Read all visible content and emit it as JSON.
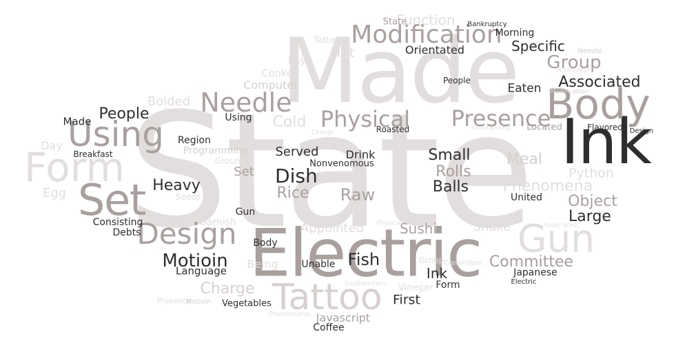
{
  "words": [
    {
      "text": "State",
      "color": "#e2dedd"
    },
    {
      "text": "Made",
      "color": "#e2dedd"
    },
    {
      "text": "Electric",
      "color": "#a9a09e"
    },
    {
      "text": "Ink",
      "color": "#2e2e2e"
    },
    {
      "text": "Body",
      "color": "#a9a09e"
    },
    {
      "text": "Tattoo",
      "color": "#d6d0ce"
    },
    {
      "text": "Gun",
      "color": "#e2dedd"
    },
    {
      "text": "Set",
      "color": "#a9a09e"
    },
    {
      "text": "Form",
      "color": "#e2dedd"
    },
    {
      "text": "Using",
      "color": "#a9a09e"
    },
    {
      "text": "Design",
      "color": "#a9a09e"
    },
    {
      "text": "Modification",
      "color": "#a9a09e"
    },
    {
      "text": "Needle",
      "color": "#a9a09e"
    },
    {
      "text": "Physical",
      "color": "#a9a09e"
    },
    {
      "text": "Presence",
      "color": "#a9a09e"
    },
    {
      "text": "Function",
      "color": "#e2dedd"
    },
    {
      "text": "Group",
      "color": "#a9a09e"
    },
    {
      "text": "Associated",
      "color": "#2e2e2e"
    },
    {
      "text": "Specific",
      "color": "#2e2e2e"
    },
    {
      "text": "Eaten",
      "color": "#2e2e2e"
    },
    {
      "text": "Hot",
      "color": "#e2dedd"
    },
    {
      "text": "Orientated",
      "color": "#2e2e2e"
    },
    {
      "text": "Morning",
      "color": "#2e2e2e"
    },
    {
      "text": "Bankruptcy",
      "color": "#2e2e2e"
    },
    {
      "text": "State",
      "color": "#a9a09e"
    },
    {
      "text": "Tattoo",
      "color": "#e2dedd"
    },
    {
      "text": "Pay",
      "color": "#e2dedd"
    },
    {
      "text": "Cooked",
      "color": "#e2dedd"
    },
    {
      "text": "Computer",
      "color": "#d6d0ce"
    },
    {
      "text": "Boided",
      "color": "#e2dedd"
    },
    {
      "text": "Presence",
      "color": "#e2dedd"
    },
    {
      "text": "People",
      "color": "#2e2e2e"
    },
    {
      "text": "People",
      "color": "#2e2e2e"
    },
    {
      "text": "Made",
      "color": "#2e2e2e"
    },
    {
      "text": "Using",
      "color": "#2e2e2e"
    },
    {
      "text": "Cold",
      "color": "#e2dedd"
    },
    {
      "text": "Charge",
      "color": "#e2dedd"
    },
    {
      "text": "Roasted",
      "color": "#2e2e2e"
    },
    {
      "text": "Outstanding",
      "color": "#e2dedd"
    },
    {
      "text": "Located",
      "color": "#a9a09e"
    },
    {
      "text": "Flavored",
      "color": "#2e2e2e"
    },
    {
      "text": "Design",
      "color": "#2e2e2e"
    },
    {
      "text": "Needle",
      "color": "#d6d0ce"
    },
    {
      "text": "Mississippi",
      "color": "#e2dedd"
    },
    {
      "text": "Modification",
      "color": "#d6d0ce"
    },
    {
      "text": "Breakfast",
      "color": "#2e2e2e"
    },
    {
      "text": "Day",
      "color": "#e2dedd"
    },
    {
      "text": "Region",
      "color": "#2e2e2e"
    },
    {
      "text": "Programming",
      "color": "#d6d0ce"
    },
    {
      "text": "Ground",
      "color": "#e2dedd"
    },
    {
      "text": "Served",
      "color": "#2e2e2e"
    },
    {
      "text": "Drink",
      "color": "#2e2e2e"
    },
    {
      "text": "Nonvenomous",
      "color": "#2e2e2e"
    },
    {
      "text": "Small",
      "color": "#2e2e2e"
    },
    {
      "text": "Rolls",
      "color": "#a9a09e"
    },
    {
      "text": "Meal",
      "color": "#d6d0ce"
    },
    {
      "text": "Python",
      "color": "#e2dedd"
    },
    {
      "text": "Phenomena",
      "color": "#e2dedd"
    },
    {
      "text": "Egg",
      "color": "#e2dedd"
    },
    {
      "text": "Heavy",
      "color": "#2e2e2e"
    },
    {
      "text": "Set",
      "color": "#a9a09e"
    },
    {
      "text": "Dish",
      "color": "#2e2e2e"
    },
    {
      "text": "Rice",
      "color": "#a9a09e"
    },
    {
      "text": "Raw",
      "color": "#a9a09e"
    },
    {
      "text": "Balls",
      "color": "#2e2e2e"
    },
    {
      "text": "United",
      "color": "#2e2e2e"
    },
    {
      "text": "Object",
      "color": "#a9a09e"
    },
    {
      "text": "Committee",
      "color": "#e2dedd"
    },
    {
      "text": "Seeds",
      "color": "#e2dedd"
    },
    {
      "text": "Gun",
      "color": "#2e2e2e"
    },
    {
      "text": "Garnish",
      "color": "#e2dedd"
    },
    {
      "text": "Consisting",
      "color": "#2e2e2e"
    },
    {
      "text": "Debts",
      "color": "#2e2e2e"
    },
    {
      "text": "Appointed",
      "color": "#e2dedd"
    },
    {
      "text": "Sushi",
      "color": "#a9a09e"
    },
    {
      "text": "Physical",
      "color": "#e2dedd"
    },
    {
      "text": "Snake",
      "color": "#e2dedd"
    },
    {
      "text": "Large",
      "color": "#2e2e2e"
    },
    {
      "text": "Associated",
      "color": "#e2dedd"
    },
    {
      "text": "Body",
      "color": "#2e2e2e"
    },
    {
      "text": "Motioin",
      "color": "#2e2e2e"
    },
    {
      "text": "Language",
      "color": "#2e2e2e"
    },
    {
      "text": "Being",
      "color": "#e2dedd"
    },
    {
      "text": "Unable",
      "color": "#2e2e2e"
    },
    {
      "text": "Fish",
      "color": "#2e2e2e"
    },
    {
      "text": "Group",
      "color": "#e2dedd"
    },
    {
      "text": "Committee",
      "color": "#a9a09e"
    },
    {
      "text": "Japanese",
      "color": "#2e2e2e"
    },
    {
      "text": "Ink",
      "color": "#2e2e2e"
    },
    {
      "text": "Form",
      "color": "#2e2e2e"
    },
    {
      "text": "Electric",
      "color": "#2e2e2e"
    },
    {
      "text": "Southeastern",
      "color": "#e2dedd"
    },
    {
      "text": "Vinegar",
      "color": "#e2dedd"
    },
    {
      "text": "Charge",
      "color": "#d6d0ce"
    },
    {
      "text": "Presence",
      "color": "#e2dedd"
    },
    {
      "text": "Motioin",
      "color": "#d6d0ce"
    },
    {
      "text": "Vegetables",
      "color": "#2e2e2e"
    },
    {
      "text": "Phenomena",
      "color": "#e2dedd"
    },
    {
      "text": "First",
      "color": "#2e2e2e"
    },
    {
      "text": "Javascript",
      "color": "#a9a09e"
    },
    {
      "text": "Coffee",
      "color": "#2e2e2e"
    },
    {
      "text": "Committee",
      "color": "#e2dedd"
    }
  ]
}
